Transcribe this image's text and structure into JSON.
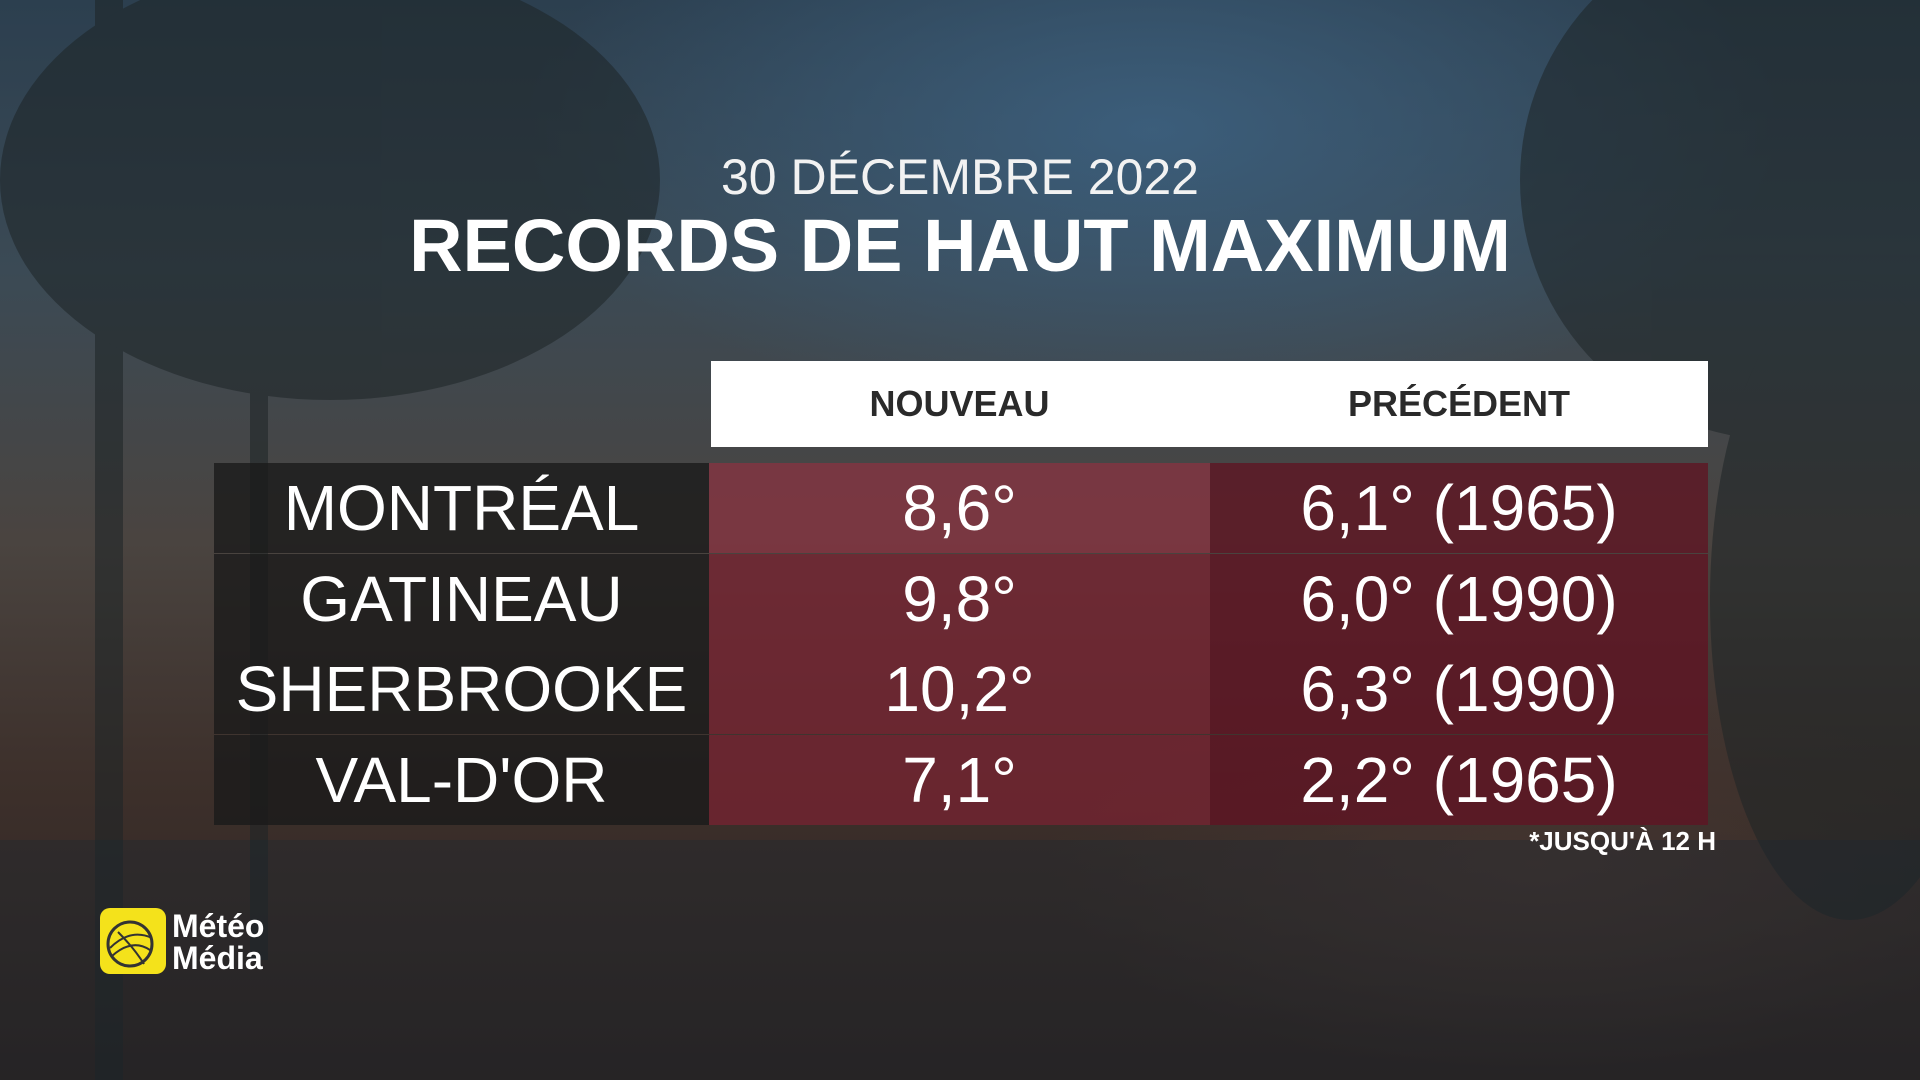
{
  "header": {
    "date": "30 DÉCEMBRE 2022",
    "title": "RECORDS DE HAUT MAXIMUM"
  },
  "table": {
    "columns": [
      "NOUVEAU",
      "PRÉCÉDENT"
    ],
    "rows": [
      [
        "MONTRÉAL",
        "8,6°",
        "6,1° (1965)"
      ],
      [
        "GATINEAU",
        "9,8°",
        "6,0° (1990)"
      ],
      [
        "SHERBROOKE",
        "10,2°",
        "6,3° (1990)"
      ],
      [
        "VAL-D'OR",
        "7,1°",
        "2,2° (1965)"
      ]
    ]
  },
  "footnote": "*JUSQU'À 12 H",
  "logo": {
    "line1": "Météo",
    "line2": "Média"
  }
}
